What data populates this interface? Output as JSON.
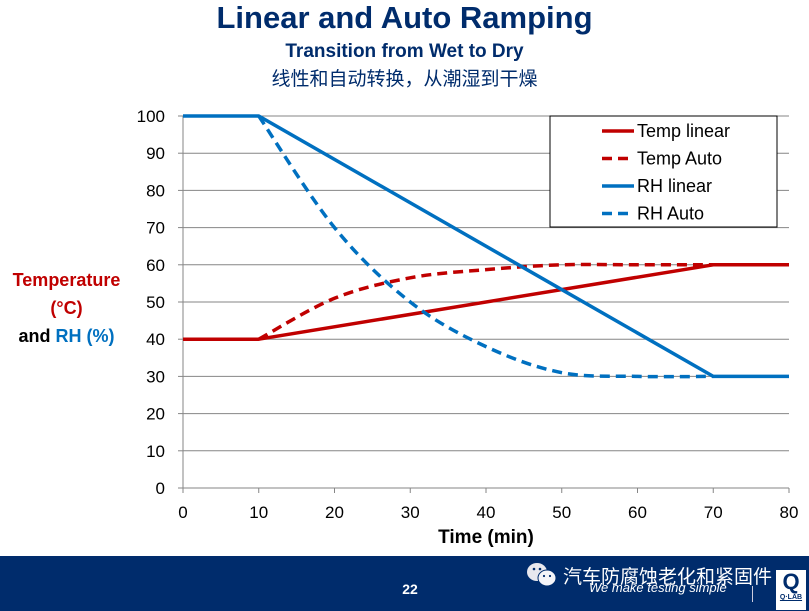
{
  "slide": {
    "title": "Linear and Auto Ramping",
    "subtitle": "Transition from Wet to Dry",
    "subtitle_cn": "线性和自动转换，从潮湿到干燥",
    "ylabel": {
      "line1": "Temperature",
      "line2": "(°C)",
      "line3_prefix": "and ",
      "line3_suffix": "RH (%)"
    }
  },
  "footer": {
    "page_number": "22",
    "watermark_cn": "汽车防腐蚀老化和紧固件",
    "tagline": "We make testing simple",
    "logo_letter": "Q",
    "logo_text": "Q·LAB",
    "wechat_icon": "wechat-icon"
  },
  "colors": {
    "title": "#002C6C",
    "temp": "#C00000",
    "rh": "#0070C0",
    "footer_bg": "#002C6C",
    "grid": "#868686"
  },
  "chart_data": {
    "type": "line",
    "title": "",
    "xlabel": "Time (min)",
    "ylabel": "Temperature (°C) and RH (%)",
    "xlim": [
      0,
      80
    ],
    "ylim": [
      0,
      100
    ],
    "xticks": [
      0,
      10,
      20,
      30,
      40,
      50,
      60,
      70,
      80
    ],
    "yticks": [
      0,
      10,
      20,
      30,
      40,
      50,
      60,
      70,
      80,
      90,
      100
    ],
    "grid": "horizontal",
    "legend_position": "top-right",
    "series": [
      {
        "name": "Temp linear",
        "color": "#C00000",
        "dash": false,
        "x": [
          0,
          10,
          70,
          80
        ],
        "y": [
          40,
          40,
          60,
          60
        ]
      },
      {
        "name": "Temp Auto",
        "color": "#C00000",
        "dash": true,
        "x": [
          10,
          20,
          30,
          40,
          50,
          60,
          70
        ],
        "y": [
          40,
          51,
          56.5,
          58.7,
          60,
          60,
          60
        ]
      },
      {
        "name": "RH linear",
        "color": "#0070C0",
        "dash": false,
        "x": [
          0,
          10,
          70,
          80
        ],
        "y": [
          100,
          100,
          30,
          30
        ]
      },
      {
        "name": "RH Auto",
        "color": "#0070C0",
        "dash": true,
        "x": [
          10,
          20,
          30,
          40,
          50,
          60,
          70
        ],
        "y": [
          100,
          70,
          50,
          38,
          31,
          30,
          30
        ]
      }
    ]
  }
}
